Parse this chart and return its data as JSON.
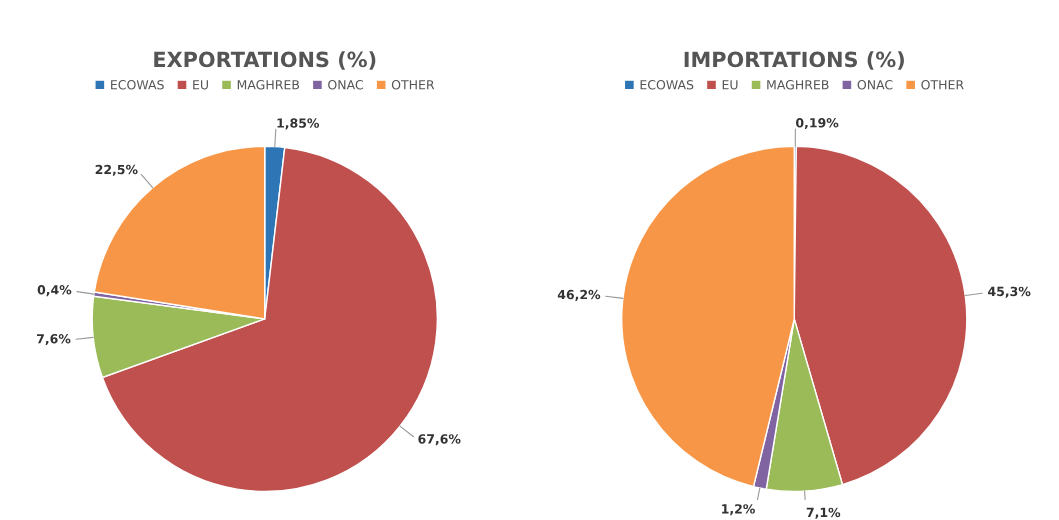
{
  "chart_data": [
    {
      "type": "pie",
      "title": "EXPORTATIONS (%)",
      "categories": [
        "ECOWAS",
        "EU",
        "MAGHREB",
        "ONAC",
        "OTHER"
      ],
      "values": [
        1.85,
        67.6,
        7.6,
        0.4,
        22.5
      ],
      "colors": [
        "#2e75b6",
        "#c0504d",
        "#9bbb59",
        "#8064a2",
        "#f79646"
      ],
      "value_labels": [
        "1,85%",
        "67,6%",
        "7,6%",
        "0,4%",
        "22,5%"
      ],
      "legend": "top"
    },
    {
      "type": "pie",
      "title": "IMPORTATIONS (%)",
      "categories": [
        "ECOWAS",
        "EU",
        "MAGHREB",
        "ONAC",
        "OTHER"
      ],
      "values": [
        0.19,
        45.3,
        7.1,
        1.2,
        46.2
      ],
      "colors": [
        "#2e75b6",
        "#c0504d",
        "#9bbb59",
        "#8064a2",
        "#f79646"
      ],
      "value_labels": [
        "0,19%",
        "45,3%",
        "7,1%",
        "1,2%",
        "46,2%"
      ],
      "legend": "top"
    }
  ]
}
